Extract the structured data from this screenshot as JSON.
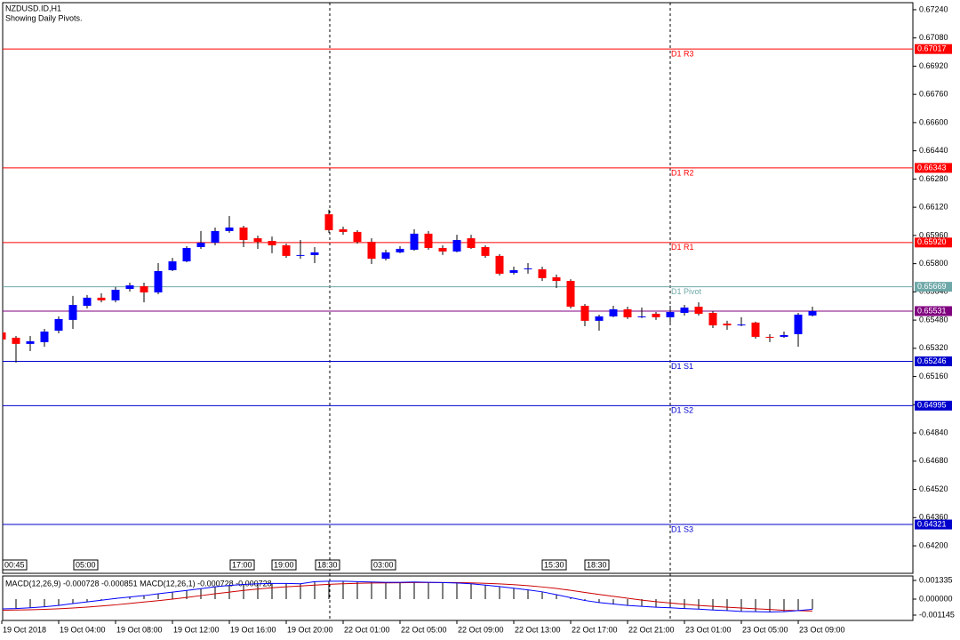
{
  "chart_data": {
    "type": "candlestick",
    "title": "NZDUSD.ID,H1",
    "subtitle": "Showing Daily Pivots.",
    "categories": [
      "19 Oct 2018",
      null,
      null,
      null,
      "19 Oct 04:00",
      null,
      null,
      null,
      "19 Oct 08:00",
      null,
      null,
      null,
      "19 Oct 12:00",
      null,
      null,
      null,
      "19 Oct 16:00",
      null,
      null,
      null,
      "19 Oct 20:00",
      null,
      null,
      null,
      "22 Oct 01:00",
      null,
      null,
      null,
      "22 Oct 05:00",
      null,
      null,
      null,
      "22 Oct 09:00",
      null,
      null,
      null,
      "22 Oct 13:00",
      null,
      null,
      null,
      "22 Oct 17:00",
      null,
      null,
      null,
      "22 Oct 21:00",
      null,
      null,
      null,
      "23 Oct 01:00",
      null,
      null,
      null,
      "23 Oct 05:00",
      null,
      null,
      null,
      "23 Oct 09:00",
      null
    ],
    "open": [
      0.6541,
      0.6538,
      0.65345,
      0.65355,
      0.6542,
      0.65481,
      0.65561,
      0.65607,
      0.65592,
      0.65657,
      0.65672,
      0.65637,
      0.65763,
      0.65813,
      0.65894,
      0.65919,
      0.65985,
      0.66005,
      0.65944,
      0.65929,
      0.65904,
      0.65844,
      0.65849,
      0.6608,
      0.65995,
      0.6598,
      0.65924,
      0.65828,
      0.65864,
      0.65879,
      0.6597,
      0.65889,
      0.65869,
      0.65944,
      0.65894,
      0.65844,
      0.65748,
      0.65768,
      0.65768,
      0.65723,
      0.65702,
      0.65561,
      0.65476,
      0.65501,
      0.65541,
      0.65496,
      0.65516,
      0.65496,
      0.65521,
      0.65556,
      0.65521,
      0.6546,
      0.6545,
      0.65466,
      0.65385,
      0.65385,
      0.654,
      0.65506
    ],
    "high": [
      0.6542,
      0.6539,
      0.6539,
      0.6543,
      0.65501,
      0.65617,
      0.65622,
      0.65632,
      0.65667,
      0.65692,
      0.65692,
      0.65803,
      0.65833,
      0.65899,
      0.65985,
      0.66005,
      0.6607,
      0.66015,
      0.65959,
      0.65954,
      0.65914,
      0.65934,
      0.65894,
      0.66106,
      0.6601,
      0.6599,
      0.65944,
      0.65879,
      0.65899,
      0.65995,
      0.65985,
      0.65904,
      0.65964,
      0.65964,
      0.65904,
      0.65854,
      0.65783,
      0.65803,
      0.65783,
      0.65738,
      0.65712,
      0.65571,
      0.65511,
      0.65561,
      0.65556,
      0.65551,
      0.65526,
      0.65561,
      0.65566,
      0.65581,
      0.65531,
      0.65476,
      0.65496,
      0.65471,
      0.654,
      0.65415,
      0.65521,
      0.65556
    ],
    "low": [
      0.6536,
      0.65239,
      0.65304,
      0.65329,
      0.65405,
      0.6543,
      0.65546,
      0.65581,
      0.65581,
      0.65642,
      0.65581,
      0.65627,
      0.65758,
      0.65808,
      0.65884,
      0.65904,
      0.65975,
      0.65894,
      0.65884,
      0.65859,
      0.65833,
      0.65828,
      0.65803,
      0.65975,
      0.65964,
      0.65914,
      0.65798,
      0.65818,
      0.65859,
      0.65874,
      0.65879,
      0.65849,
      0.65864,
      0.65884,
      0.65833,
      0.65733,
      0.65738,
      0.65743,
      0.65702,
      0.65662,
      0.65546,
      0.65445,
      0.6542,
      0.65496,
      0.65486,
      0.65491,
      0.65481,
      0.65466,
      0.65506,
      0.65506,
      0.65435,
      0.65425,
      0.65445,
      0.65375,
      0.65355,
      0.6538,
      0.65329,
      0.65501
    ],
    "close": [
      0.6537,
      0.65345,
      0.6536,
      0.65415,
      0.65486,
      0.65566,
      0.65607,
      0.65592,
      0.65652,
      0.65677,
      0.65637,
      0.65758,
      0.65813,
      0.65889,
      0.65919,
      0.65985,
      0.66005,
      0.65934,
      0.65924,
      0.65904,
      0.65844,
      0.65849,
      0.65864,
      0.6599,
      0.6598,
      0.65924,
      0.65828,
      0.65864,
      0.65884,
      0.6597,
      0.65889,
      0.65869,
      0.65934,
      0.65889,
      0.65844,
      0.65743,
      0.65763,
      0.65773,
      0.65718,
      0.65702,
      0.65556,
      0.65476,
      0.65501,
      0.65541,
      0.65496,
      0.65501,
      0.65496,
      0.65526,
      0.65551,
      0.65516,
      0.6545,
      0.6545,
      0.65455,
      0.65385,
      0.6538,
      0.65395,
      0.65511,
      0.65531
    ],
    "up_color": "#0000ff",
    "down_color": "#ff0000",
    "wick_color": "#000000",
    "ylim": [
      0.64044,
      0.6728
    ],
    "yticks": [
      {
        "value": 0.6724,
        "label": "0.67240"
      },
      {
        "value": 0.6708,
        "label": "0.67080"
      },
      {
        "value": 0.6692,
        "label": "0.66920"
      },
      {
        "value": 0.6676,
        "label": "0.66760"
      },
      {
        "value": 0.666,
        "label": "0.66600"
      },
      {
        "value": 0.6644,
        "label": "0.66440"
      },
      {
        "value": 0.6628,
        "label": "0.66280"
      },
      {
        "value": 0.6612,
        "label": "0.66120"
      },
      {
        "value": 0.6596,
        "label": "0.65960"
      },
      {
        "value": 0.658,
        "label": "0.65800"
      },
      {
        "value": 0.6564,
        "label": "0.65640"
      },
      {
        "value": 0.6548,
        "label": "0.65480"
      },
      {
        "value": 0.6532,
        "label": "0.65320"
      },
      {
        "value": 0.6516,
        "label": "0.65160"
      },
      {
        "value": 0.65,
        "label": "0.65000"
      },
      {
        "value": 0.6484,
        "label": "0.64840"
      },
      {
        "value": 0.6468,
        "label": "0.64680"
      },
      {
        "value": 0.6452,
        "label": "0.64520"
      },
      {
        "value": 0.6436,
        "label": "0.64360"
      },
      {
        "value": 0.642,
        "label": "0.64200"
      }
    ],
    "pivots": [
      {
        "name": "D1 R3",
        "value": 0.67017,
        "label": "0.67017",
        "color": "#ff0000"
      },
      {
        "name": "D1 R2",
        "value": 0.66343,
        "label": "0.66343",
        "color": "#ff0000"
      },
      {
        "name": "D1 R1",
        "value": 0.6592,
        "label": "0.65920",
        "color": "#ff0000"
      },
      {
        "name": "D1 Pivot",
        "value": 0.65669,
        "label": "0.65669",
        "color": "#6fa8a8"
      },
      {
        "name": "D1 S1",
        "value": 0.65246,
        "label": "0.65246",
        "color": "#0000cd"
      },
      {
        "name": "D1 S2",
        "value": 0.64995,
        "label": "0.64995",
        "color": "#0000cd"
      },
      {
        "name": "D1 S3",
        "value": 0.64321,
        "label": "0.64321",
        "color": "#0000cd"
      }
    ],
    "current_price": {
      "value": 0.65531,
      "label": "0.65531",
      "color": "#800080"
    },
    "session_labels": [
      "00:45",
      "05:00",
      "17:00",
      "19:00",
      "18:30",
      "03:00",
      "15:30",
      "18:30"
    ],
    "macd": {
      "label": "MACD(12,26,9) -0.000728 -0.000851 MACD(12,26,1) -0.000728 -0.000728",
      "values": [
        -0.0007,
        -0.00068,
        -0.00062,
        -0.00055,
        -0.00045,
        -0.00032,
        -0.0002,
        -8e-05,
        5e-05,
        0.00015,
        0.00025,
        0.00038,
        0.0005,
        0.00062,
        0.00075,
        0.00088,
        0.00098,
        0.00105,
        0.0011,
        0.00112,
        0.00112,
        0.0011,
        0.00125,
        0.00128,
        0.00128,
        0.00125,
        0.00122,
        0.0012,
        0.0012,
        0.00122,
        0.0012,
        0.00118,
        0.00115,
        0.0011,
        0.001,
        0.0009,
        0.00078,
        0.00066,
        0.00052,
        0.00032,
        0.0001,
        -0.0001,
        -0.00025,
        -0.00035,
        -0.00045,
        -0.00052,
        -0.00058,
        -0.00062,
        -0.00068,
        -0.00072,
        -0.00078,
        -0.00082,
        -0.00088,
        -0.0009,
        -0.00092,
        -0.0009,
        -0.00082,
        -0.000728
      ],
      "signal": [
        -0.0008,
        -0.00078,
        -0.00076,
        -0.00073,
        -0.00069,
        -0.00064,
        -0.00057,
        -0.00049,
        -0.00041,
        -0.00031,
        -0.00021,
        -0.00011,
        0.0,
        0.00012,
        0.00025,
        0.00038,
        0.0005,
        0.00062,
        0.00072,
        0.00081,
        0.00088,
        0.00094,
        0.001,
        0.00106,
        0.0011,
        0.00113,
        0.00115,
        0.00116,
        0.00117,
        0.00118,
        0.00118,
        0.00118,
        0.00118,
        0.00116,
        0.00113,
        0.00109,
        0.00103,
        0.00096,
        0.00087,
        0.00076,
        0.00063,
        0.00048,
        0.00033,
        0.0002,
        6e-05,
        -7e-05,
        -0.00018,
        -0.00028,
        -0.00037,
        -0.00045,
        -0.00052,
        -0.00058,
        -0.00064,
        -0.00069,
        -0.00074,
        -0.0008,
        -0.00083,
        -0.000851
      ],
      "macd_color": "#0000ff",
      "signal_color": "#cc0000",
      "bar_color": "#000000",
      "ylim": [
        -0.001527,
        0.001653
      ],
      "yticks": [
        0.001335,
        {
          "value": 0,
          "label": "0.000000"
        },
        -0.001145
      ]
    }
  }
}
